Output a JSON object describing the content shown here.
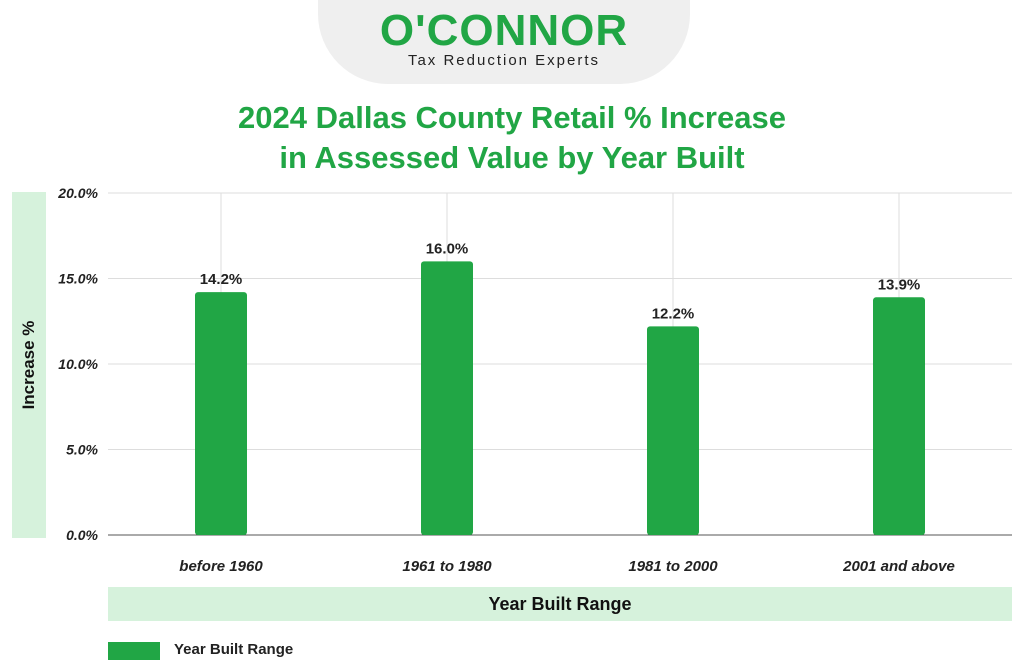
{
  "logo": {
    "name": "O'CONNOR",
    "tagline": "Tax Reduction Experts"
  },
  "colors": {
    "accent": "#21a645",
    "band": "#d6f2dc",
    "grid": "#dddddd",
    "text": "#222222"
  },
  "chart_data": {
    "type": "bar",
    "title_lines": [
      "2024 Dallas County Retail % Increase",
      "in Assessed Value by Year Built"
    ],
    "xlabel": "Year Built Range",
    "ylabel": "Increase %",
    "categories": [
      "before 1960",
      "1961 to 1980",
      "1981 to 2000",
      "2001 and above"
    ],
    "series": [
      {
        "name": "Year Built Range",
        "values": [
          14.2,
          16.0,
          12.2,
          13.9
        ],
        "data_labels": [
          "14.2%",
          "16.0%",
          "12.2%",
          "13.9%"
        ]
      }
    ],
    "ylim": [
      0,
      20
    ],
    "yticks": [
      "0.0%",
      "5.0%",
      "10.0%",
      "15.0%",
      "20.0%"
    ],
    "ytick_values": [
      0,
      5,
      10,
      15,
      20
    ],
    "grid": true,
    "legend_position": "bottom-left"
  }
}
